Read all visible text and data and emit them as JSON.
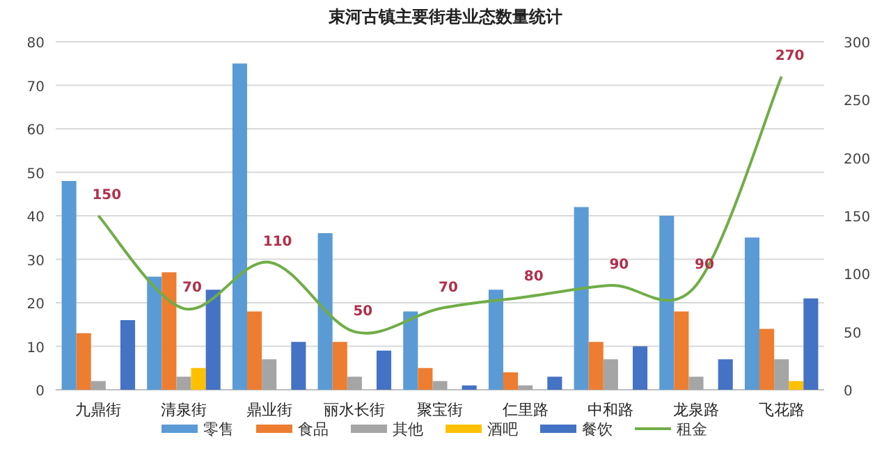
{
  "chart_data": {
    "type": "bar",
    "title": "束河古镇主要街巷业态数量统计",
    "categories": [
      "九鼎街",
      "清泉街",
      "鼎业街",
      "丽水长街",
      "聚宝街",
      "仁里路",
      "中和路",
      "龙泉路",
      "飞花路"
    ],
    "series": [
      {
        "name": "零售",
        "color": "#5b9bd5",
        "values": [
          48,
          26,
          75,
          36,
          18,
          23,
          42,
          40,
          35
        ]
      },
      {
        "name": "食品",
        "color": "#ed7d31",
        "values": [
          13,
          27,
          18,
          11,
          5,
          4,
          11,
          18,
          14
        ]
      },
      {
        "name": "其他",
        "color": "#a5a5a5",
        "values": [
          2,
          3,
          7,
          3,
          2,
          1,
          7,
          3,
          7
        ]
      },
      {
        "name": "酒吧",
        "color": "#ffc000",
        "values": [
          0,
          5,
          0,
          0,
          0,
          0,
          0,
          0,
          2
        ]
      },
      {
        "name": "餐饮",
        "color": "#4472c4",
        "values": [
          16,
          23,
          11,
          9,
          1,
          3,
          10,
          7,
          21
        ]
      },
      {
        "name": "租金",
        "color": "#70ad47",
        "type": "line",
        "axis": "y2",
        "values": [
          150,
          70,
          110,
          50,
          70,
          80,
          90,
          90,
          270
        ],
        "value_labels": [
          "150",
          "70",
          "110",
          "50",
          "70",
          "80",
          "90",
          "90",
          "270"
        ]
      }
    ],
    "ylim": [
      0,
      80
    ],
    "yticks": [
      0,
      10,
      20,
      30,
      40,
      50,
      60,
      70,
      80
    ],
    "y2lim": [
      0,
      300
    ],
    "y2ticks": [
      0,
      50,
      100,
      150,
      200,
      250,
      300
    ],
    "grid": "y",
    "legend": "bottom",
    "marker": "none"
  }
}
